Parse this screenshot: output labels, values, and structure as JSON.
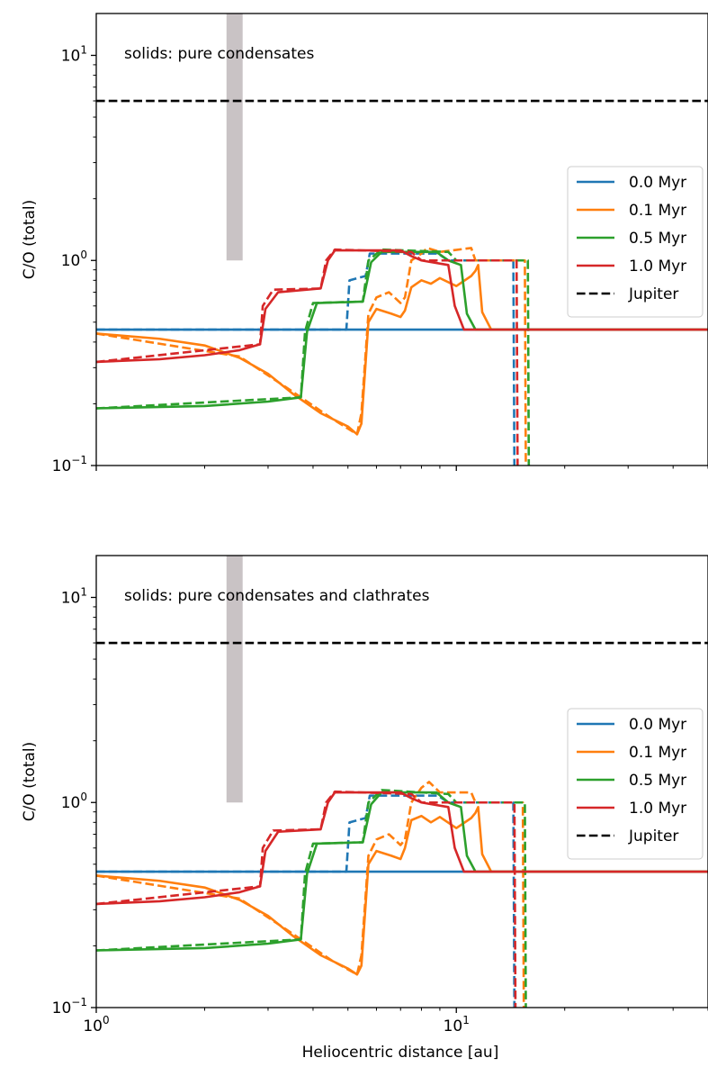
{
  "chart_data": [
    {
      "type": "line",
      "annotation": "solids: pure condensates",
      "xlabel": "",
      "ylabel": "C/O (total)",
      "xscale": "log",
      "yscale": "log",
      "xlim": [
        1,
        50
      ],
      "ylim": [
        0.1,
        16
      ],
      "x_ticks": [
        {
          "value": 1,
          "label": ""
        },
        {
          "value": 10,
          "label": ""
        }
      ],
      "y_ticks": [
        {
          "value": 0.1,
          "base": "10",
          "exp": "−1"
        },
        {
          "value": 1,
          "base": "10",
          "exp": "0"
        },
        {
          "value": 10,
          "base": "10",
          "exp": "1"
        }
      ],
      "legend_position": "right",
      "shaded_region": {
        "x": [
          2.3,
          2.55
        ],
        "y": [
          1.0,
          16
        ],
        "color": "#c9c3c5"
      },
      "series": [
        {
          "name": "0.0 Myr",
          "color": "#1f77b4",
          "style": "solid",
          "points": [
            [
              1,
              0.46
            ],
            [
              50,
              0.46
            ]
          ]
        },
        {
          "name": "",
          "color": "#1f77b4",
          "style": "dashed",
          "points": [
            [
              1,
              0.46
            ],
            [
              4.95,
              0.46
            ],
            [
              5.05,
              0.8
            ],
            [
              5.6,
              0.84
            ],
            [
              5.75,
              1.08
            ],
            [
              8.9,
              1.08
            ],
            [
              9.5,
              1.0
            ],
            [
              14.4,
              1.0
            ],
            [
              14.5,
              0.09
            ]
          ]
        },
        {
          "name": "0.1 Myr",
          "color": "#ff7f0e",
          "style": "solid",
          "points": [
            [
              1,
              0.44
            ],
            [
              1.5,
              0.415
            ],
            [
              2.0,
              0.385
            ],
            [
              2.5,
              0.335
            ],
            [
              3.0,
              0.28
            ],
            [
              3.5,
              0.225
            ],
            [
              4.2,
              0.18
            ],
            [
              5.0,
              0.155
            ],
            [
              5.3,
              0.142
            ],
            [
              5.45,
              0.16
            ],
            [
              5.7,
              0.5
            ],
            [
              6.0,
              0.58
            ],
            [
              6.6,
              0.55
            ],
            [
              7.0,
              0.53
            ],
            [
              7.2,
              0.57
            ],
            [
              7.5,
              0.74
            ],
            [
              8.0,
              0.8
            ],
            [
              8.5,
              0.77
            ],
            [
              9.0,
              0.82
            ],
            [
              10.0,
              0.75
            ],
            [
              11.0,
              0.84
            ],
            [
              11.3,
              0.89
            ],
            [
              11.5,
              0.95
            ],
            [
              11.8,
              0.56
            ],
            [
              12.5,
              0.46
            ],
            [
              50,
              0.46
            ]
          ]
        },
        {
          "name": "",
          "color": "#ff7f0e",
          "style": "dashed",
          "points": [
            [
              1,
              0.44
            ],
            [
              2.5,
              0.34
            ],
            [
              3.5,
              0.23
            ],
            [
              4.5,
              0.17
            ],
            [
              5.3,
              0.142
            ],
            [
              5.45,
              0.18
            ],
            [
              5.7,
              0.55
            ],
            [
              6.0,
              0.66
            ],
            [
              6.5,
              0.7
            ],
            [
              7.0,
              0.62
            ],
            [
              7.2,
              0.66
            ],
            [
              7.5,
              1.0
            ],
            [
              8.0,
              1.08
            ],
            [
              8.3,
              1.15
            ],
            [
              9.0,
              1.1
            ],
            [
              11.0,
              1.15
            ],
            [
              11.3,
              1.0
            ],
            [
              15.5,
              1.0
            ],
            [
              15.6,
              0.09
            ]
          ]
        },
        {
          "name": "0.5 Myr",
          "color": "#2ca02c",
          "style": "solid",
          "points": [
            [
              1,
              0.19
            ],
            [
              2.0,
              0.195
            ],
            [
              3.0,
              0.205
            ],
            [
              3.7,
              0.215
            ],
            [
              3.85,
              0.45
            ],
            [
              4.1,
              0.62
            ],
            [
              5.5,
              0.63
            ],
            [
              5.8,
              0.98
            ],
            [
              6.2,
              1.1
            ],
            [
              8.8,
              1.1
            ],
            [
              9.5,
              1.0
            ],
            [
              10.3,
              0.95
            ],
            [
              10.7,
              0.55
            ],
            [
              11.3,
              0.46
            ],
            [
              50,
              0.46
            ]
          ]
        },
        {
          "name": "",
          "color": "#2ca02c",
          "style": "dashed",
          "points": [
            [
              1,
              0.19
            ],
            [
              3.7,
              0.215
            ],
            [
              3.8,
              0.45
            ],
            [
              4.0,
              0.62
            ],
            [
              5.5,
              0.63
            ],
            [
              5.7,
              1.0
            ],
            [
              6.2,
              1.13
            ],
            [
              9.5,
              1.1
            ],
            [
              10.0,
              1.0
            ],
            [
              15.8,
              1.0
            ],
            [
              15.9,
              0.09
            ]
          ]
        },
        {
          "name": "1.0 Myr",
          "color": "#d62728",
          "style": "solid",
          "points": [
            [
              1,
              0.32
            ],
            [
              1.5,
              0.33
            ],
            [
              2.0,
              0.345
            ],
            [
              2.5,
              0.365
            ],
            [
              2.85,
              0.39
            ],
            [
              2.95,
              0.58
            ],
            [
              3.2,
              0.7
            ],
            [
              4.2,
              0.73
            ],
            [
              4.4,
              1.0
            ],
            [
              4.6,
              1.12
            ],
            [
              7.0,
              1.12
            ],
            [
              7.5,
              1.05
            ],
            [
              8.0,
              1.0
            ],
            [
              9.5,
              0.95
            ],
            [
              9.9,
              0.6
            ],
            [
              10.5,
              0.46
            ],
            [
              50,
              0.46
            ]
          ]
        },
        {
          "name": "",
          "color": "#d62728",
          "style": "dashed",
          "points": [
            [
              1,
              0.32
            ],
            [
              2.85,
              0.39
            ],
            [
              2.9,
              0.6
            ],
            [
              3.1,
              0.72
            ],
            [
              4.2,
              0.73
            ],
            [
              4.35,
              1.0
            ],
            [
              4.6,
              1.13
            ],
            [
              7.5,
              1.1
            ],
            [
              8.0,
              1.0
            ],
            [
              14.7,
              1.0
            ],
            [
              14.8,
              0.09
            ]
          ]
        },
        {
          "name": "Jupiter",
          "color": "#000000",
          "style": "dashed",
          "points": [
            [
              1,
              6.0
            ],
            [
              50,
              6.0
            ]
          ]
        }
      ]
    },
    {
      "type": "line",
      "annotation": "solids: pure condensates and clathrates",
      "xlabel": "Heliocentric distance [au]",
      "ylabel": "C/O (total)",
      "xscale": "log",
      "yscale": "log",
      "xlim": [
        1,
        50
      ],
      "ylim": [
        0.1,
        16
      ],
      "x_ticks": [
        {
          "value": 1,
          "base": "10",
          "exp": "0"
        },
        {
          "value": 10,
          "base": "10",
          "exp": "1"
        }
      ],
      "y_ticks": [
        {
          "value": 0.1,
          "base": "10",
          "exp": "−1"
        },
        {
          "value": 1,
          "base": "10",
          "exp": "0"
        },
        {
          "value": 10,
          "base": "10",
          "exp": "1"
        }
      ],
      "legend_position": "right",
      "shaded_region": {
        "x": [
          2.3,
          2.55
        ],
        "y": [
          1.0,
          16
        ],
        "color": "#c9c3c5"
      },
      "series": [
        {
          "name": "0.0 Myr",
          "color": "#1f77b4",
          "style": "solid",
          "points": [
            [
              1,
              0.46
            ],
            [
              50,
              0.46
            ]
          ]
        },
        {
          "name": "",
          "color": "#1f77b4",
          "style": "dashed",
          "points": [
            [
              1,
              0.46
            ],
            [
              4.95,
              0.46
            ],
            [
              5.05,
              0.8
            ],
            [
              5.6,
              0.84
            ],
            [
              5.75,
              1.08
            ],
            [
              8.9,
              1.08
            ],
            [
              9.5,
              1.0
            ],
            [
              14.4,
              1.0
            ],
            [
              14.5,
              0.09
            ]
          ]
        },
        {
          "name": "0.1 Myr",
          "color": "#ff7f0e",
          "style": "solid",
          "points": [
            [
              1,
              0.44
            ],
            [
              1.5,
              0.415
            ],
            [
              2.0,
              0.385
            ],
            [
              2.5,
              0.335
            ],
            [
              3.0,
              0.28
            ],
            [
              3.5,
              0.225
            ],
            [
              4.2,
              0.18
            ],
            [
              5.0,
              0.155
            ],
            [
              5.3,
              0.145
            ],
            [
              5.45,
              0.16
            ],
            [
              5.7,
              0.5
            ],
            [
              6.0,
              0.58
            ],
            [
              6.6,
              0.55
            ],
            [
              7.0,
              0.53
            ],
            [
              7.2,
              0.6
            ],
            [
              7.5,
              0.82
            ],
            [
              8.0,
              0.86
            ],
            [
              8.5,
              0.8
            ],
            [
              9.0,
              0.85
            ],
            [
              10.0,
              0.75
            ],
            [
              11.0,
              0.84
            ],
            [
              11.3,
              0.89
            ],
            [
              11.5,
              0.95
            ],
            [
              11.8,
              0.56
            ],
            [
              12.5,
              0.46
            ],
            [
              50,
              0.46
            ]
          ]
        },
        {
          "name": "",
          "color": "#ff7f0e",
          "style": "dashed",
          "points": [
            [
              1,
              0.44
            ],
            [
              2.5,
              0.34
            ],
            [
              3.5,
              0.23
            ],
            [
              4.5,
              0.17
            ],
            [
              5.3,
              0.145
            ],
            [
              5.45,
              0.18
            ],
            [
              5.7,
              0.55
            ],
            [
              6.0,
              0.66
            ],
            [
              6.5,
              0.7
            ],
            [
              7.0,
              0.62
            ],
            [
              7.2,
              0.66
            ],
            [
              7.5,
              1.0
            ],
            [
              8.0,
              1.18
            ],
            [
              8.4,
              1.26
            ],
            [
              9.0,
              1.12
            ],
            [
              11.0,
              1.12
            ],
            [
              11.3,
              1.0
            ],
            [
              15.3,
              1.0
            ],
            [
              15.4,
              0.09
            ]
          ]
        },
        {
          "name": "0.5 Myr",
          "color": "#2ca02c",
          "style": "solid",
          "points": [
            [
              1,
              0.19
            ],
            [
              2.0,
              0.195
            ],
            [
              3.0,
              0.205
            ],
            [
              3.7,
              0.215
            ],
            [
              3.85,
              0.45
            ],
            [
              4.1,
              0.63
            ],
            [
              5.5,
              0.64
            ],
            [
              5.8,
              0.98
            ],
            [
              6.2,
              1.12
            ],
            [
              8.8,
              1.12
            ],
            [
              9.5,
              1.0
            ],
            [
              10.3,
              0.95
            ],
            [
              10.7,
              0.55
            ],
            [
              11.3,
              0.46
            ],
            [
              50,
              0.46
            ]
          ]
        },
        {
          "name": "",
          "color": "#2ca02c",
          "style": "dashed",
          "points": [
            [
              1,
              0.19
            ],
            [
              3.7,
              0.215
            ],
            [
              3.8,
              0.45
            ],
            [
              4.0,
              0.63
            ],
            [
              5.5,
              0.64
            ],
            [
              5.7,
              1.0
            ],
            [
              6.2,
              1.15
            ],
            [
              9.5,
              1.1
            ],
            [
              10.0,
              1.0
            ],
            [
              15.5,
              1.0
            ],
            [
              15.6,
              0.09
            ]
          ]
        },
        {
          "name": "1.0 Myr",
          "color": "#d62728",
          "style": "solid",
          "points": [
            [
              1,
              0.32
            ],
            [
              1.5,
              0.33
            ],
            [
              2.0,
              0.345
            ],
            [
              2.5,
              0.365
            ],
            [
              2.85,
              0.39
            ],
            [
              2.95,
              0.58
            ],
            [
              3.2,
              0.72
            ],
            [
              4.2,
              0.74
            ],
            [
              4.4,
              1.0
            ],
            [
              4.6,
              1.12
            ],
            [
              7.0,
              1.12
            ],
            [
              7.5,
              1.05
            ],
            [
              8.0,
              1.0
            ],
            [
              9.5,
              0.95
            ],
            [
              9.9,
              0.6
            ],
            [
              10.5,
              0.46
            ],
            [
              50,
              0.46
            ]
          ]
        },
        {
          "name": "",
          "color": "#d62728",
          "style": "dashed",
          "points": [
            [
              1,
              0.32
            ],
            [
              2.85,
              0.39
            ],
            [
              2.9,
              0.6
            ],
            [
              3.1,
              0.73
            ],
            [
              4.2,
              0.74
            ],
            [
              4.35,
              1.0
            ],
            [
              4.6,
              1.13
            ],
            [
              7.5,
              1.1
            ],
            [
              8.0,
              1.0
            ],
            [
              14.5,
              1.0
            ],
            [
              14.6,
              0.09
            ]
          ]
        },
        {
          "name": "Jupiter",
          "color": "#000000",
          "style": "dashed",
          "points": [
            [
              1,
              6.0
            ],
            [
              50,
              6.0
            ]
          ]
        }
      ]
    }
  ]
}
